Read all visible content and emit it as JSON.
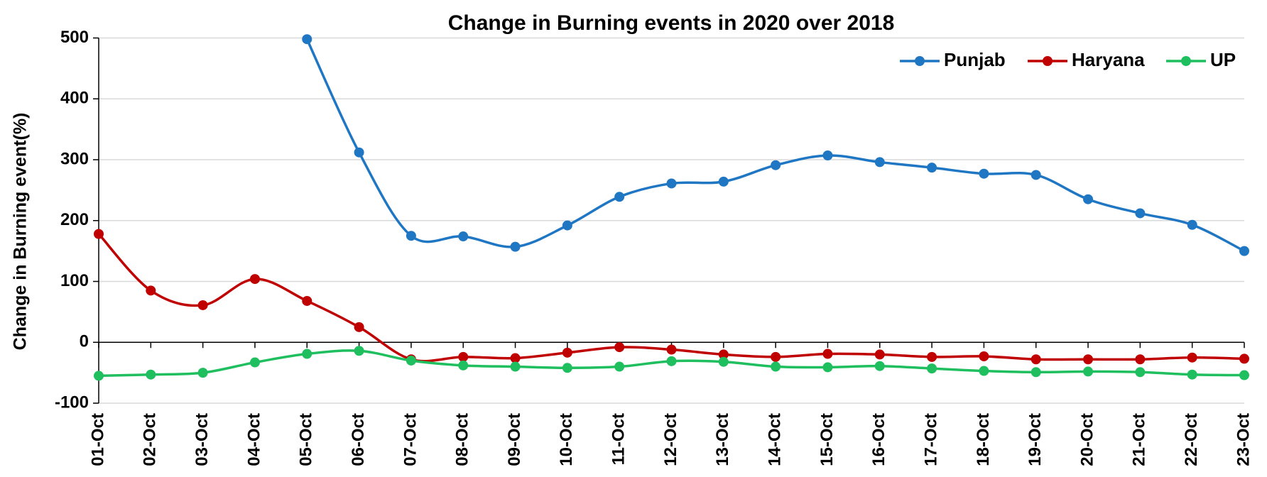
{
  "chart_data": {
    "type": "line",
    "title": "Change in Burning events in 2020 over 2018",
    "y_label": "Change in Burning event(%)",
    "categories": [
      "01-Oct",
      "02-Oct",
      "03-Oct",
      "04-Oct",
      "05-Oct",
      "06-Oct",
      "07-Oct",
      "08-Oct",
      "09-Oct",
      "10-Oct",
      "11-Oct",
      "12-Oct",
      "13-Oct",
      "14-Oct",
      "15-Oct",
      "16-Oct",
      "17-Oct",
      "18-Oct",
      "19-Oct",
      "20-Oct",
      "21-Oct",
      "22-Oct",
      "23-Oct"
    ],
    "series": [
      {
        "name": "Punjab",
        "color": "#1f77c4",
        "values": [
          null,
          null,
          null,
          null,
          498,
          312,
          175,
          174,
          157,
          192,
          239,
          261,
          264,
          291,
          307,
          296,
          287,
          277,
          275,
          235,
          212,
          193,
          150
        ]
      },
      {
        "name": "Haryana",
        "color": "#c00000",
        "values": [
          178,
          85,
          61,
          104,
          68,
          25,
          -28,
          -24,
          -26,
          -17,
          -8,
          -12,
          -20,
          -24,
          -19,
          -20,
          -24,
          -23,
          -28,
          -28,
          -28,
          -25,
          -27
        ]
      },
      {
        "name": "UP",
        "color": "#1fbf5f",
        "values": [
          -55,
          -53,
          -50,
          -33,
          -19,
          -14,
          -30,
          -38,
          -40,
          -42,
          -40,
          -31,
          -32,
          -40,
          -41,
          -39,
          -43,
          -47,
          -49,
          -48,
          -49,
          -53,
          -54
        ]
      }
    ],
    "ylim": [
      -100,
      500
    ],
    "yticks": [
      -100,
      0,
      100,
      200,
      300,
      400,
      500
    ],
    "grid": true,
    "legend": "top-right",
    "smooth": true
  }
}
